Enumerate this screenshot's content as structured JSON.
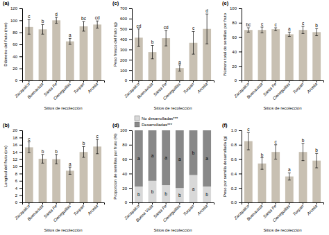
{
  "chart_data": [
    {
      "type": "bar",
      "title": "(a)",
      "xlabel": "Sitios de recolección",
      "ylabel": "Diámetro del fruto (mm)",
      "categories": [
        "Zacapalco",
        "Buenavista",
        "Santa Fe",
        "Cieneguillas",
        "Tuxpan",
        "Arcelia"
      ],
      "values": [
        89,
        85,
        100,
        65,
        90,
        93
      ],
      "errors": [
        12,
        8,
        5,
        5,
        8,
        6
      ],
      "annotations": [
        "c",
        "b",
        "d",
        "a",
        "bc",
        "cd"
      ],
      "color": "#c8c0b2",
      "ylim": [
        0,
        120
      ],
      "yticks": [
        0,
        20,
        40,
        60,
        80,
        100,
        120
      ]
    },
    {
      "type": "bar",
      "title": "(c)",
      "xlabel": "Sitios de recolección",
      "ylabel": "Peso fresco del fruto (g)",
      "categories": [
        "Zacapalco",
        "Buenavista",
        "Santa Fe",
        "Cieneguillas",
        "Tuxpan",
        "Arcelia"
      ],
      "values": [
        415,
        275,
        410,
        120,
        365,
        500
      ],
      "errors": [
        85,
        65,
        75,
        30,
        110,
        145
      ],
      "annotations": [
        "cd",
        "b",
        "cd",
        "a",
        "c",
        "d"
      ],
      "color": "#c8c0b2",
      "ylim": [
        0,
        700
      ],
      "yticks": [
        0,
        100,
        200,
        300,
        400,
        500,
        600,
        700
      ]
    },
    {
      "type": "bar",
      "title": "(e)",
      "xlabel": "Sitios de recolección",
      "ylabel": "Número total de semillas por fruto",
      "categories": [
        "Zacapalco",
        "Buenavista",
        "Santa Fe",
        "Cieneguillas",
        "Tuxpan",
        "Arcelia"
      ],
      "values": [
        70,
        70,
        71,
        64,
        70,
        67
      ],
      "errors": [
        3,
        4,
        2,
        3,
        5,
        5
      ],
      "annotations": [
        "bc",
        "c",
        "c",
        "a",
        "c",
        "b"
      ],
      "color": "#c8c0b2",
      "ylim": [
        0,
        100
      ],
      "yticks": [
        0,
        20,
        40,
        60,
        80,
        100
      ]
    },
    {
      "type": "bar",
      "title": "(b)",
      "xlabel": "Sitios de recolección",
      "ylabel": "Longitud del fruto (cm)",
      "categories": [
        "Zacapalco",
        "Buenavista",
        "Santa Fe",
        "Cieneguillas",
        "Tuxpan",
        "Arcelia"
      ],
      "values": [
        15.3,
        12.1,
        12.0,
        8.8,
        14.0,
        15.5
      ],
      "errors": [
        1.5,
        1.2,
        1.3,
        1.0,
        1.5,
        2.0
      ],
      "annotations": [
        "c",
        "b",
        "b",
        "a",
        "b",
        "c"
      ],
      "color": "#c8c0b2",
      "ylim": [
        0,
        20
      ],
      "yticks": [
        0,
        2,
        4,
        6,
        8,
        10,
        12,
        14,
        16,
        18,
        20
      ]
    },
    {
      "type": "bar",
      "title": "(d)",
      "xlabel": "Sitios de recolección",
      "ylabel": "Proporcion de semillas por fruto (%)",
      "categories": [
        "Zacapalco",
        "Buena Vista",
        "Santa Fe",
        "Cieneguillas",
        "Tuxpan",
        "Arcelia"
      ],
      "stacked": true,
      "legend": "top-left",
      "series": [
        {
          "name": "No desarrolladas***",
          "color": "#d8d8d8",
          "values": [
            22,
            30,
            24,
            20,
            38,
            22
          ],
          "annotations": [
            "b",
            "b",
            "b",
            "b",
            "a",
            "b"
          ]
        },
        {
          "name": "Desarrolladas***",
          "color": "#888888",
          "values": [
            78,
            70,
            76,
            80,
            62,
            78
          ],
          "annotations": [
            "a",
            "a",
            "a",
            "a",
            "b",
            "a"
          ]
        }
      ],
      "ylim": [
        0,
        100
      ],
      "yticks": [
        0,
        20,
        40,
        60,
        80,
        100
      ]
    },
    {
      "type": "bar",
      "title": "(f)",
      "xlabel": "Sitios de recolección",
      "ylabel": "Peso por semilla desarrollada (g)",
      "categories": [
        "Zacapalco",
        "Buenavista",
        "Santa Fe",
        "Cieneguillas",
        "Tuxpan",
        "Arcelia"
      ],
      "values": [
        0.85,
        0.54,
        0.7,
        0.36,
        0.7,
        0.58
      ],
      "errors": [
        0.12,
        0.08,
        0.1,
        0.05,
        0.12,
        0.1
      ],
      "annotations": [
        "c",
        "b",
        "c",
        "a",
        "b",
        "b"
      ],
      "color": "#c8c0b2",
      "ylim": [
        0.0,
        1.0
      ],
      "yticks": [
        {
          "value": 0.0,
          "label": "0.0"
        },
        0.2,
        0.4,
        0.6,
        0.8,
        {
          "value": 1.0,
          "label": "1.0"
        }
      ]
    }
  ]
}
